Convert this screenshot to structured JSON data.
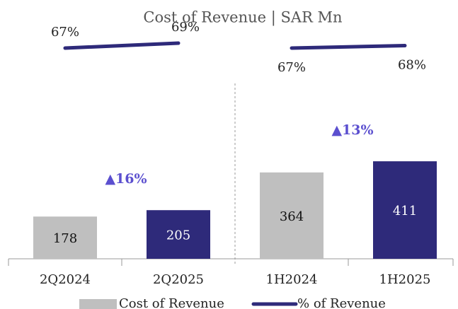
{
  "title": "Cost of Revenue | SAR Mn",
  "chart_data": [
    {
      "type": "bar",
      "categories": [
        "2Q2024",
        "2Q2025"
      ],
      "series": [
        {
          "name": "Cost of Revenue",
          "colors": [
            "#bfbfbf",
            "#2e2a7a"
          ],
          "values": [
            178,
            205
          ]
        },
        {
          "name": "% of Revenue",
          "type": "line",
          "axis": "y2",
          "color": "#2e2a7a",
          "values": [
            67,
            69
          ],
          "value_labels": [
            "67%",
            "69%"
          ]
        }
      ],
      "annotations": [
        "▲16%"
      ],
      "annotation_color": "#5b4fcf",
      "ylim": [
        0,
        450
      ],
      "y2lim": [
        55,
        75
      ],
      "label_position": "above"
    },
    {
      "type": "bar",
      "categories": [
        "1H2024",
        "1H2025"
      ],
      "series": [
        {
          "name": "Cost of Revenue",
          "colors": [
            "#bfbfbf",
            "#2e2a7a"
          ],
          "values": [
            364,
            411
          ]
        },
        {
          "name": "% of Revenue",
          "type": "line",
          "axis": "y2",
          "color": "#2e2a7a",
          "values": [
            67,
            68
          ],
          "value_labels": [
            "67%",
            "68%"
          ]
        }
      ],
      "annotations": [
        "▲13%"
      ],
      "annotation_color": "#5b4fcf",
      "ylim": [
        0,
        450
      ],
      "y2lim": [
        55,
        75
      ],
      "label_position": "below"
    }
  ]
}
